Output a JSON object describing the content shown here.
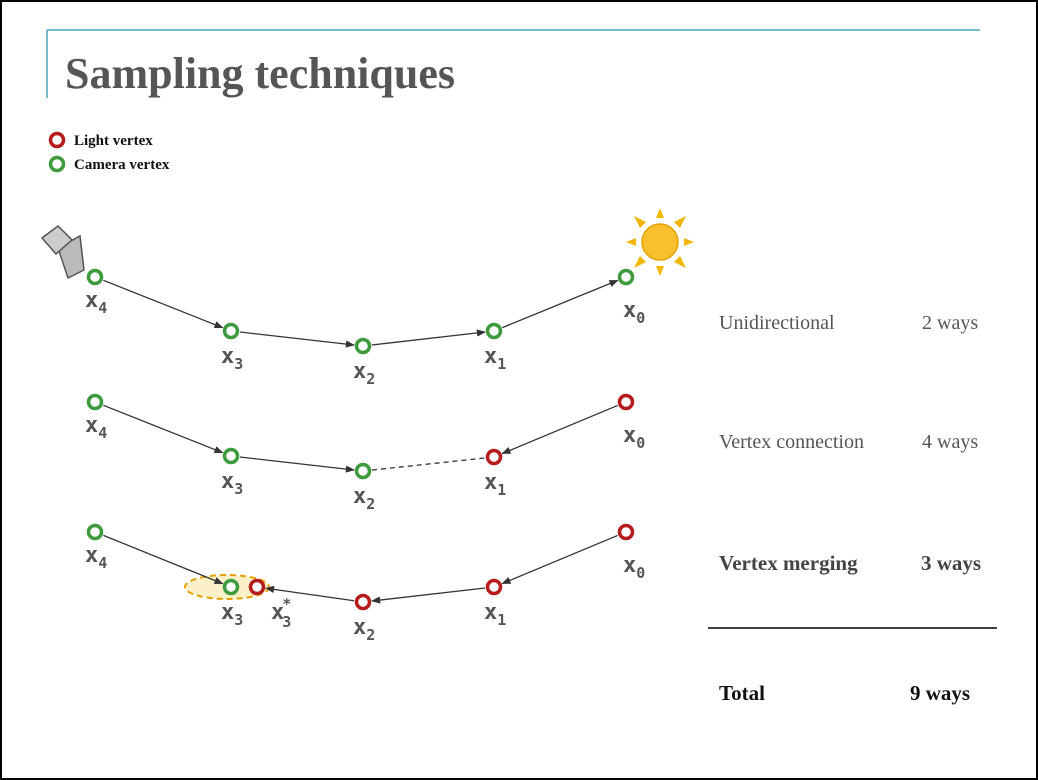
{
  "title": "Sampling techniques",
  "legend": [
    {
      "label": "Light vertex",
      "kind": "light"
    },
    {
      "label": "Camera vertex",
      "kind": "camera"
    }
  ],
  "diagram": {
    "rows": [
      {
        "vertices": [
          {
            "label": "x",
            "sub": "4",
            "kind": "camera"
          },
          {
            "label": "x",
            "sub": "3",
            "kind": "camera"
          },
          {
            "label": "x",
            "sub": "2",
            "kind": "camera"
          },
          {
            "label": "x",
            "sub": "1",
            "kind": "camera"
          },
          {
            "label": "x",
            "sub": "0",
            "kind": "camera"
          }
        ]
      },
      {
        "vertices": [
          {
            "label": "x",
            "sub": "4",
            "kind": "camera"
          },
          {
            "label": "x",
            "sub": "3",
            "kind": "camera"
          },
          {
            "label": "x",
            "sub": "2",
            "kind": "camera"
          },
          {
            "label": "x",
            "sub": "1",
            "kind": "light"
          },
          {
            "label": "x",
            "sub": "0",
            "kind": "light"
          }
        ]
      },
      {
        "vertices": [
          {
            "label": "x",
            "sub": "4",
            "kind": "camera"
          },
          {
            "label": "x",
            "sub": "3",
            "kind": "camera"
          },
          {
            "label": "x",
            "sub": "3",
            "sup": "*",
            "kind": "light"
          },
          {
            "label": "x",
            "sub": "2",
            "kind": "light"
          },
          {
            "label": "x",
            "sub": "1",
            "kind": "light"
          },
          {
            "label": "x",
            "sub": "0",
            "kind": "light"
          }
        ]
      }
    ]
  },
  "techniques": [
    {
      "label": "Unidirectional",
      "count": "2 ways"
    },
    {
      "label": "Vertex connection",
      "count": "4 ways"
    },
    {
      "label": "Vertex merging",
      "count": "3 ways"
    }
  ],
  "total": {
    "label": "Total",
    "count": "9 ways"
  }
}
